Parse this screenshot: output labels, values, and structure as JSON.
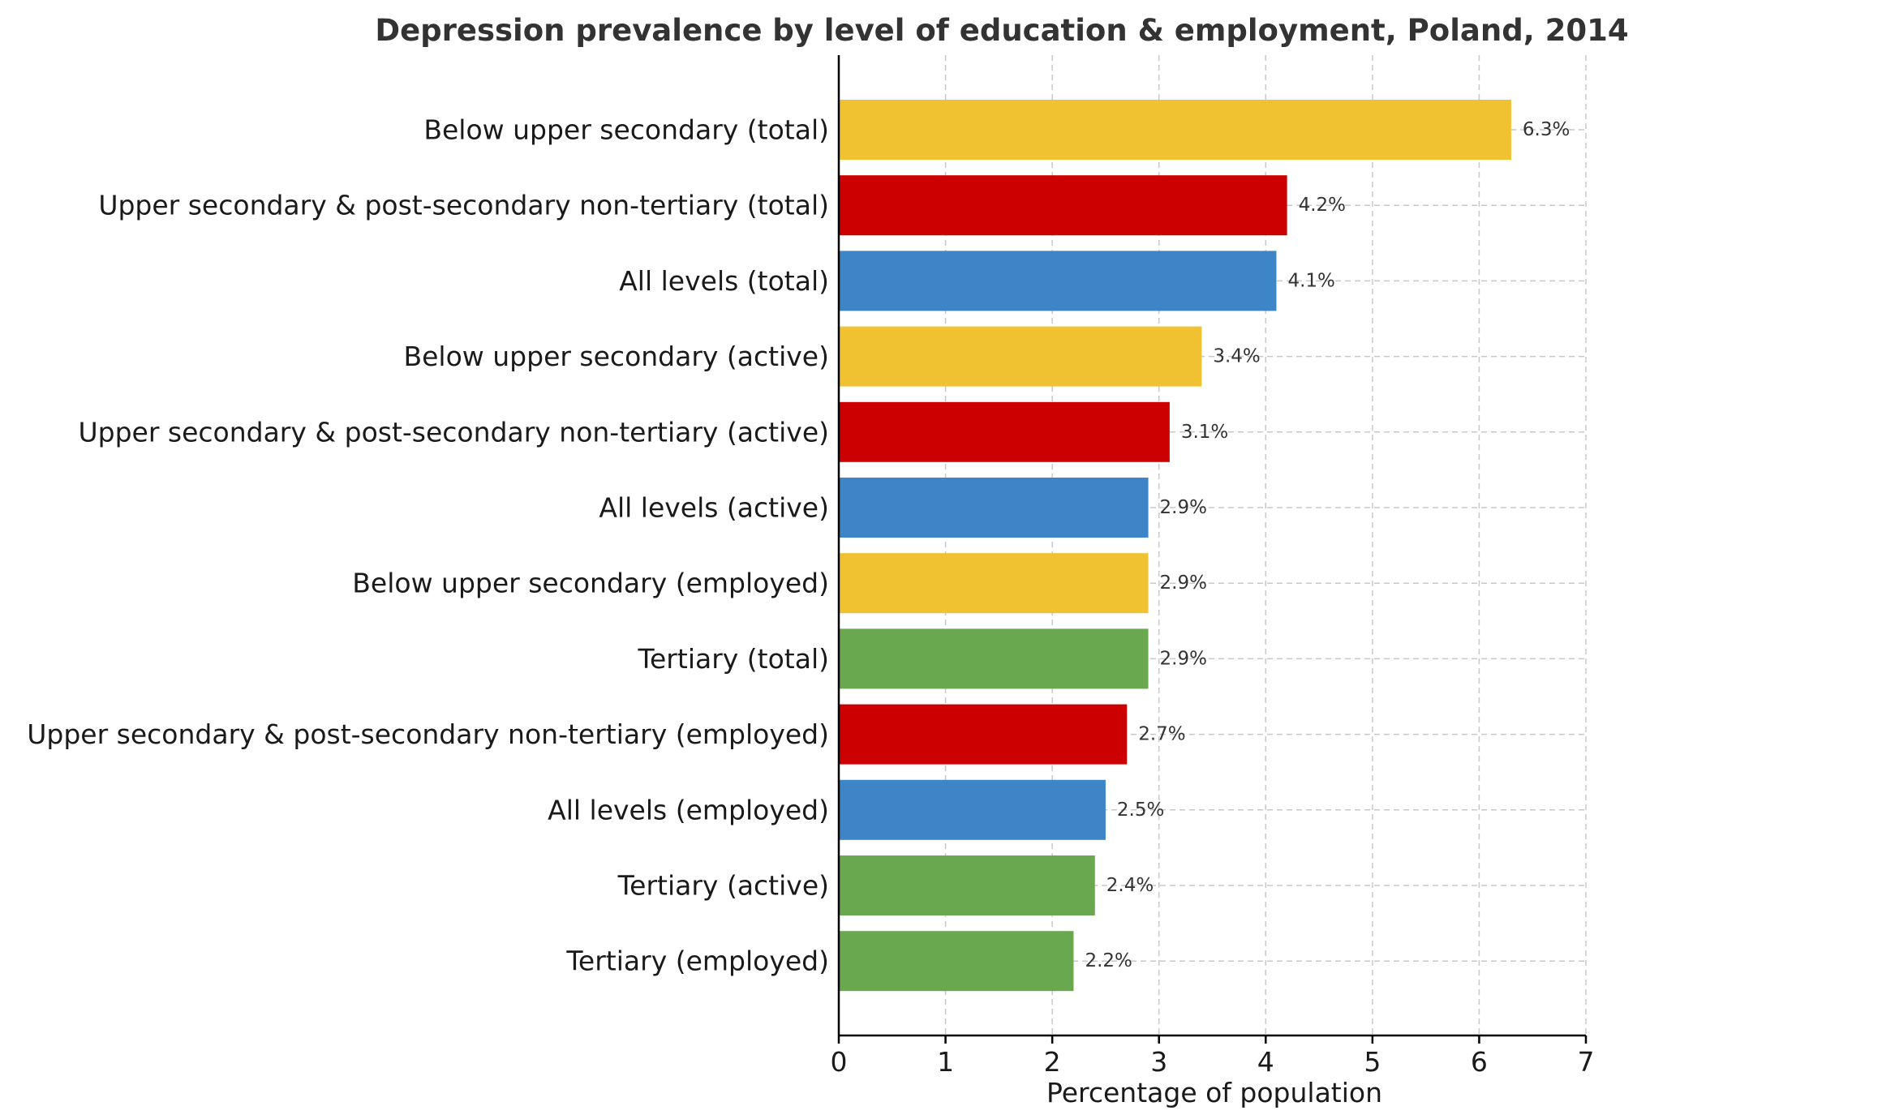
{
  "chart_data": {
    "type": "bar",
    "orientation": "horizontal",
    "title": "Depression prevalence by level of education & employment, Poland, 2014",
    "xlabel": "Percentage of population",
    "ylabel": "",
    "xlim": [
      0,
      7
    ],
    "xticks": [
      "0",
      "1",
      "2",
      "3",
      "4",
      "5",
      "6",
      "7"
    ],
    "grid": true,
    "colors": {
      "below_upper_secondary": "#f0c232",
      "upper_secondary": "#cc0000",
      "all_levels": "#3d85c6",
      "tertiary": "#6aa84f"
    },
    "bars": [
      {
        "category": "Below upper secondary (total)",
        "value": 6.3,
        "label": "6.3%",
        "group": "below_upper_secondary"
      },
      {
        "category": "Upper secondary & post-secondary non-tertiary (total)",
        "value": 4.2,
        "label": "4.2%",
        "group": "upper_secondary"
      },
      {
        "category": "All levels (total)",
        "value": 4.1,
        "label": "4.1%",
        "group": "all_levels"
      },
      {
        "category": "Below upper secondary (active)",
        "value": 3.4,
        "label": "3.4%",
        "group": "below_upper_secondary"
      },
      {
        "category": "Upper secondary & post-secondary non-tertiary (active)",
        "value": 3.1,
        "label": "3.1%",
        "group": "upper_secondary"
      },
      {
        "category": "All levels (active)",
        "value": 2.9,
        "label": "2.9%",
        "group": "all_levels"
      },
      {
        "category": "Below upper secondary (employed)",
        "value": 2.9,
        "label": "2.9%",
        "group": "below_upper_secondary"
      },
      {
        "category": "Tertiary (total)",
        "value": 2.9,
        "label": "2.9%",
        "group": "tertiary"
      },
      {
        "category": "Upper secondary & post-secondary non-tertiary (employed)",
        "value": 2.7,
        "label": "2.7%",
        "group": "upper_secondary"
      },
      {
        "category": "All levels (employed)",
        "value": 2.5,
        "label": "2.5%",
        "group": "all_levels"
      },
      {
        "category": "Tertiary (active)",
        "value": 2.4,
        "label": "2.4%",
        "group": "tertiary"
      },
      {
        "category": "Tertiary (employed)",
        "value": 2.2,
        "label": "2.2%",
        "group": "tertiary"
      }
    ]
  }
}
